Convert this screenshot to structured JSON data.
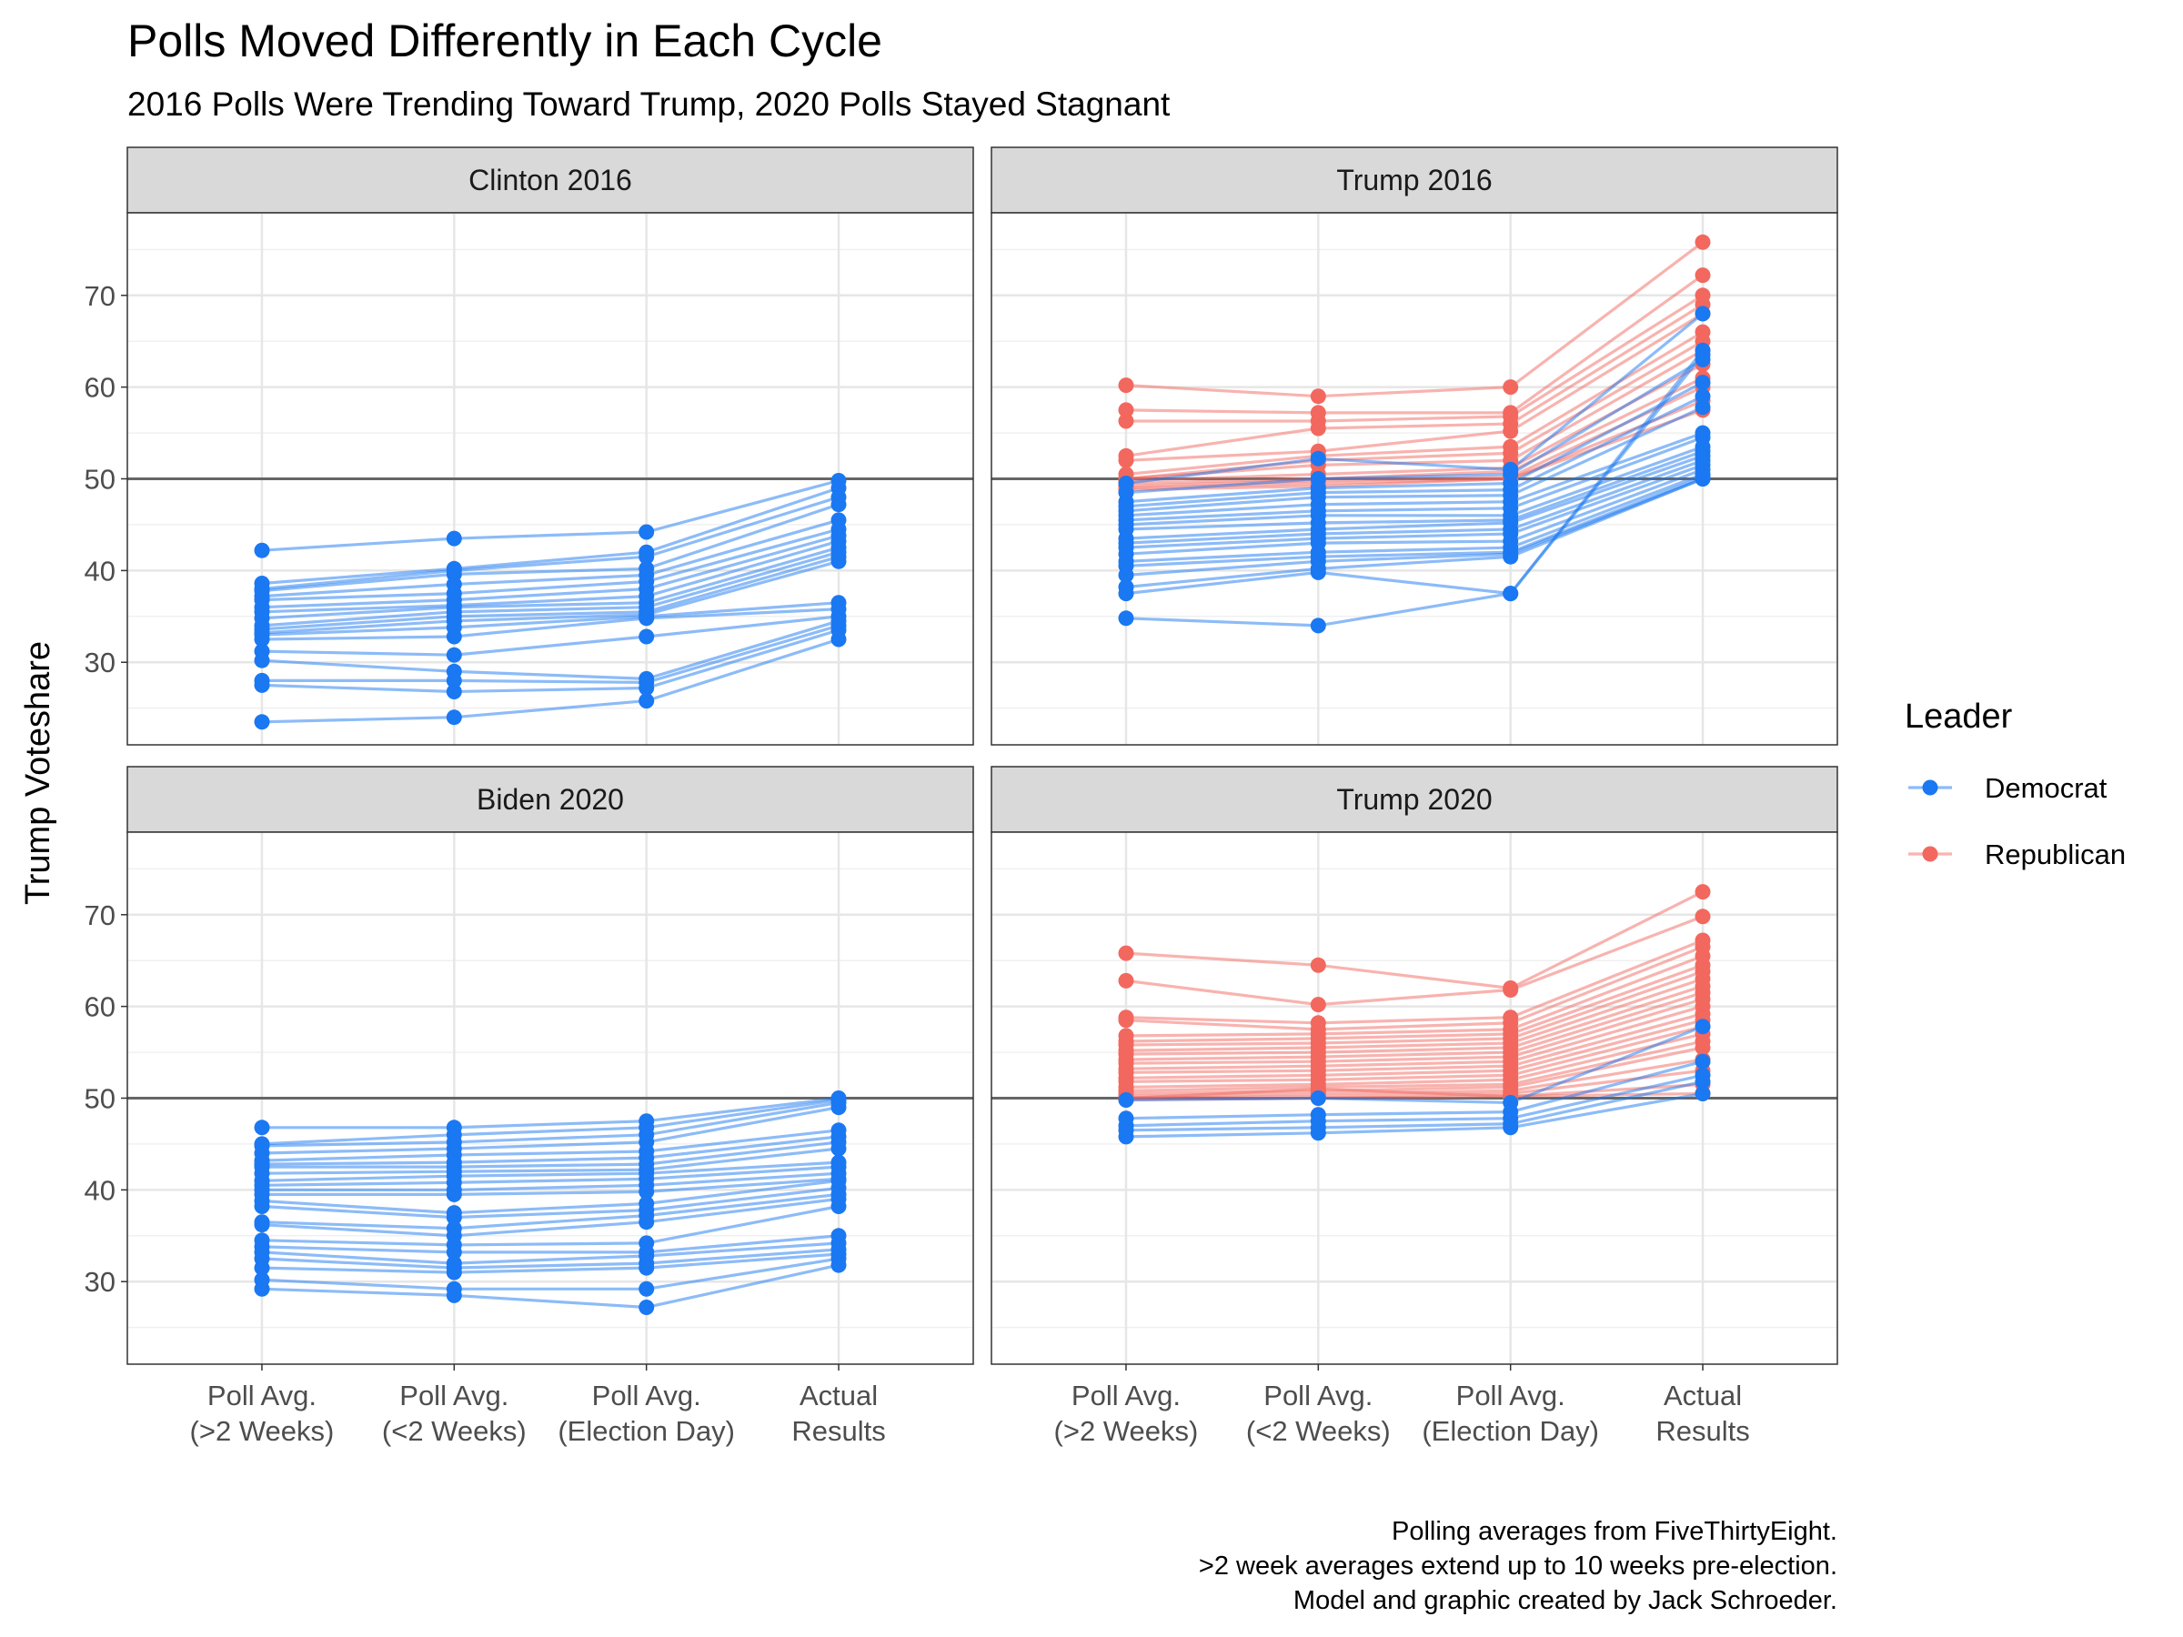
{
  "chart_data": {
    "type": "line",
    "title": "Polls Moved Differently in Each Cycle",
    "subtitle": "2016 Polls Were Trending Toward Trump, 2020 Polls Stayed Stagnant",
    "ylabel": "Trump Voteshare",
    "x_categories": [
      [
        "Poll Avg.",
        "(>2 Weeks)"
      ],
      [
        "Poll Avg.",
        "(<2 Weeks)"
      ],
      [
        "Poll Avg.",
        "(Election Day)"
      ],
      [
        "Actual",
        "Results"
      ]
    ],
    "ylim": [
      21,
      79
    ],
    "y_ticks": [
      30,
      40,
      50,
      60,
      70
    ],
    "reference_line": 50,
    "legend": {
      "title": "Leader",
      "placement": "right",
      "items": [
        {
          "label": "Democrat",
          "color": "#1A78F2"
        },
        {
          "label": "Republican",
          "color": "#F2685F"
        }
      ]
    },
    "caption": [
      "Polling averages from FiveThirtyEight.",
      ">2 week averages extend up to 10 weeks pre-election.",
      "Model and graphic created by Jack Schroeder."
    ],
    "panels": [
      {
        "label": "Clinton 2016",
        "series": [
          {
            "leader": "Democrat",
            "values": [
              42.2,
              43.5,
              44.2,
              49.8
            ]
          },
          {
            "leader": "Democrat",
            "values": [
              38.6,
              40.2,
              42.0,
              49.0
            ]
          },
          {
            "leader": "Democrat",
            "values": [
              38.0,
              40.0,
              41.5,
              48.0
            ]
          },
          {
            "leader": "Democrat",
            "values": [
              37.8,
              39.6,
              40.2,
              47.2
            ]
          },
          {
            "leader": "Democrat",
            "values": [
              37.2,
              38.5,
              39.5,
              45.5
            ]
          },
          {
            "leader": "Democrat",
            "values": [
              36.8,
              37.5,
              38.8,
              44.5
            ]
          },
          {
            "leader": "Democrat",
            "values": [
              36.0,
              36.8,
              38.0,
              43.8
            ]
          },
          {
            "leader": "Democrat",
            "values": [
              35.5,
              36.2,
              37.2,
              43.2
            ]
          },
          {
            "leader": "Democrat",
            "values": [
              34.8,
              36.0,
              36.5,
              42.5
            ]
          },
          {
            "leader": "Democrat",
            "values": [
              34.0,
              35.5,
              36.0,
              42.0
            ]
          },
          {
            "leader": "Democrat",
            "values": [
              33.6,
              35.0,
              35.5,
              41.5
            ]
          },
          {
            "leader": "Democrat",
            "values": [
              33.2,
              34.5,
              35.2,
              41.0
            ]
          },
          {
            "leader": "Democrat",
            "values": [
              33.0,
              33.8,
              35.0,
              36.5
            ]
          },
          {
            "leader": "Democrat",
            "values": [
              32.5,
              32.8,
              34.8,
              35.8
            ]
          },
          {
            "leader": "Democrat",
            "values": [
              31.2,
              30.8,
              32.8,
              35.0
            ]
          },
          {
            "leader": "Democrat",
            "values": [
              30.2,
              29.0,
              28.2,
              34.5
            ]
          },
          {
            "leader": "Democrat",
            "values": [
              28.0,
              28.0,
              27.8,
              34.0
            ]
          },
          {
            "leader": "Democrat",
            "values": [
              27.5,
              26.8,
              27.2,
              33.5
            ]
          },
          {
            "leader": "Democrat",
            "values": [
              23.5,
              24.0,
              25.8,
              32.5
            ]
          }
        ]
      },
      {
        "label": "Trump 2016",
        "series": [
          {
            "leader": "Republican",
            "values": [
              60.2,
              59.0,
              60.0,
              75.8
            ]
          },
          {
            "leader": "Republican",
            "values": [
              57.5,
              57.2,
              57.2,
              72.2
            ]
          },
          {
            "leader": "Republican",
            "values": [
              56.3,
              56.3,
              56.8,
              70.0
            ]
          },
          {
            "leader": "Republican",
            "values": [
              52.5,
              55.5,
              56.0,
              69.0
            ]
          },
          {
            "leader": "Republican",
            "values": [
              52.0,
              53.0,
              55.2,
              68.0
            ]
          },
          {
            "leader": "Republican",
            "values": [
              50.5,
              52.5,
              53.5,
              66.0
            ]
          },
          {
            "leader": "Republican",
            "values": [
              50.0,
              52.0,
              52.8,
              65.0
            ]
          },
          {
            "leader": "Republican",
            "values": [
              50.0,
              51.5,
              52.0,
              64.0
            ]
          },
          {
            "leader": "Republican",
            "values": [
              49.8,
              50.5,
              51.2,
              62.5
            ]
          },
          {
            "leader": "Republican",
            "values": [
              49.5,
              50.0,
              50.8,
              61.0
            ]
          },
          {
            "leader": "Republican",
            "values": [
              49.2,
              49.8,
              50.2,
              60.0
            ]
          },
          {
            "leader": "Republican",
            "values": [
              49.0,
              49.5,
              50.0,
              58.5
            ]
          },
          {
            "leader": "Republican",
            "values": [
              48.8,
              49.2,
              50.0,
              57.5
            ]
          },
          {
            "leader": "Democrat",
            "values": [
              49.5,
              52.2,
              51.0,
              68.0
            ]
          },
          {
            "leader": "Democrat",
            "values": [
              48.5,
              50.0,
              50.5,
              63.0
            ]
          },
          {
            "leader": "Democrat",
            "values": [
              47.5,
              49.0,
              49.5,
              60.5
            ]
          },
          {
            "leader": "Democrat",
            "values": [
              47.0,
              48.5,
              48.8,
              59.0
            ]
          },
          {
            "leader": "Democrat",
            "values": [
              46.5,
              48.0,
              48.2,
              57.8
            ]
          },
          {
            "leader": "Democrat",
            "values": [
              46.0,
              47.2,
              47.5,
              55.0
            ]
          },
          {
            "leader": "Democrat",
            "values": [
              45.5,
              46.5,
              46.8,
              54.5
            ]
          },
          {
            "leader": "Democrat",
            "values": [
              45.0,
              46.0,
              46.0,
              53.5
            ]
          },
          {
            "leader": "Democrat",
            "values": [
              44.5,
              45.2,
              45.5,
              53.0
            ]
          },
          {
            "leader": "Democrat",
            "values": [
              43.5,
              44.5,
              45.2,
              52.5
            ]
          },
          {
            "leader": "Democrat",
            "values": [
              43.0,
              44.0,
              44.5,
              52.0
            ]
          },
          {
            "leader": "Democrat",
            "values": [
              42.5,
              43.5,
              44.0,
              51.5
            ]
          },
          {
            "leader": "Democrat",
            "values": [
              41.8,
              43.0,
              43.2,
              51.0
            ]
          },
          {
            "leader": "Democrat",
            "values": [
              41.0,
              42.0,
              42.5,
              50.5
            ]
          },
          {
            "leader": "Democrat",
            "values": [
              40.5,
              41.5,
              42.0,
              50.2
            ]
          },
          {
            "leader": "Democrat",
            "values": [
              39.5,
              41.0,
              41.8,
              50.0
            ]
          },
          {
            "leader": "Democrat",
            "values": [
              38.2,
              40.2,
              41.5,
              50.0
            ]
          },
          {
            "leader": "Democrat",
            "values": [
              37.5,
              39.8,
              37.5,
              64.0
            ]
          },
          {
            "leader": "Democrat",
            "values": [
              34.8,
              34.0,
              37.5,
              63.5
            ]
          }
        ]
      },
      {
        "label": "Biden 2020",
        "series": [
          {
            "leader": "Democrat",
            "values": [
              46.8,
              46.8,
              47.5,
              50.0
            ]
          },
          {
            "leader": "Democrat",
            "values": [
              45.0,
              46.0,
              46.8,
              49.8
            ]
          },
          {
            "leader": "Democrat",
            "values": [
              44.8,
              45.2,
              46.0,
              49.5
            ]
          },
          {
            "leader": "Democrat",
            "values": [
              44.0,
              44.5,
              45.2,
              49.0
            ]
          },
          {
            "leader": "Democrat",
            "values": [
              43.2,
              43.8,
              44.2,
              46.5
            ]
          },
          {
            "leader": "Democrat",
            "values": [
              42.8,
              43.0,
              43.5,
              45.8
            ]
          },
          {
            "leader": "Democrat",
            "values": [
              42.5,
              42.5,
              42.8,
              45.2
            ]
          },
          {
            "leader": "Democrat",
            "values": [
              41.8,
              42.0,
              42.2,
              44.5
            ]
          },
          {
            "leader": "Democrat",
            "values": [
              41.0,
              41.5,
              41.8,
              43.0
            ]
          },
          {
            "leader": "Democrat",
            "values": [
              40.5,
              40.8,
              41.2,
              42.5
            ]
          },
          {
            "leader": "Democrat",
            "values": [
              40.0,
              40.0,
              40.5,
              41.8
            ]
          },
          {
            "leader": "Democrat",
            "values": [
              39.5,
              39.5,
              39.8,
              41.2
            ]
          },
          {
            "leader": "Democrat",
            "values": [
              38.8,
              37.5,
              38.5,
              41.0
            ]
          },
          {
            "leader": "Democrat",
            "values": [
              38.2,
              37.0,
              37.8,
              40.2
            ]
          },
          {
            "leader": "Democrat",
            "values": [
              36.5,
              35.8,
              37.2,
              39.5
            ]
          },
          {
            "leader": "Democrat",
            "values": [
              36.2,
              35.0,
              36.5,
              39.0
            ]
          },
          {
            "leader": "Democrat",
            "values": [
              34.5,
              34.0,
              34.2,
              38.2
            ]
          },
          {
            "leader": "Democrat",
            "values": [
              33.8,
              33.2,
              33.2,
              35.0
            ]
          },
          {
            "leader": "Democrat",
            "values": [
              33.2,
              32.0,
              32.8,
              34.2
            ]
          },
          {
            "leader": "Democrat",
            "values": [
              32.5,
              31.5,
              32.0,
              33.5
            ]
          },
          {
            "leader": "Democrat",
            "values": [
              31.5,
              31.0,
              31.5,
              33.0
            ]
          },
          {
            "leader": "Democrat",
            "values": [
              30.2,
              29.2,
              29.2,
              32.5
            ]
          },
          {
            "leader": "Democrat",
            "values": [
              29.2,
              28.5,
              27.2,
              31.8
            ]
          }
        ]
      },
      {
        "label": "Trump 2020",
        "series": [
          {
            "leader": "Republican",
            "values": [
              65.8,
              64.5,
              62.0,
              72.5
            ]
          },
          {
            "leader": "Republican",
            "values": [
              62.8,
              60.2,
              61.8,
              69.8
            ]
          },
          {
            "leader": "Republican",
            "values": [
              58.8,
              58.2,
              58.8,
              67.2
            ]
          },
          {
            "leader": "Republican",
            "values": [
              58.5,
              57.5,
              58.2,
              66.5
            ]
          },
          {
            "leader": "Republican",
            "values": [
              56.8,
              57.0,
              57.5,
              65.5
            ]
          },
          {
            "leader": "Republican",
            "values": [
              56.2,
              56.5,
              57.0,
              64.5
            ]
          },
          {
            "leader": "Republican",
            "values": [
              55.8,
              56.0,
              56.5,
              63.8
            ]
          },
          {
            "leader": "Republican",
            "values": [
              55.2,
              55.5,
              56.0,
              63.0
            ]
          },
          {
            "leader": "Republican",
            "values": [
              54.8,
              55.0,
              55.5,
              62.2
            ]
          },
          {
            "leader": "Republican",
            "values": [
              54.2,
              54.5,
              55.0,
              61.5
            ]
          },
          {
            "leader": "Republican",
            "values": [
              53.8,
              54.0,
              54.5,
              60.8
            ]
          },
          {
            "leader": "Republican",
            "values": [
              53.2,
              53.5,
              54.0,
              60.0
            ]
          },
          {
            "leader": "Republican",
            "values": [
              52.8,
              53.0,
              53.5,
              59.2
            ]
          },
          {
            "leader": "Republican",
            "values": [
              52.2,
              52.5,
              53.0,
              58.5
            ]
          },
          {
            "leader": "Republican",
            "values": [
              51.8,
              52.0,
              52.5,
              57.8
            ]
          },
          {
            "leader": "Republican",
            "values": [
              51.2,
              51.5,
              52.0,
              57.0
            ]
          },
          {
            "leader": "Republican",
            "values": [
              50.8,
              51.2,
              51.5,
              56.2
            ]
          },
          {
            "leader": "Republican",
            "values": [
              50.5,
              50.8,
              51.2,
              55.5
            ]
          },
          {
            "leader": "Republican",
            "values": [
              50.2,
              50.5,
              50.8,
              54.2
            ]
          },
          {
            "leader": "Republican",
            "values": [
              50.0,
              50.2,
              50.5,
              53.0
            ]
          },
          {
            "leader": "Republican",
            "values": [
              49.8,
              50.0,
              50.2,
              51.5
            ]
          },
          {
            "leader": "Republican",
            "values": [
              50.0,
              51.0,
              50.2,
              50.5
            ]
          },
          {
            "leader": "Democrat",
            "values": [
              49.8,
              50.0,
              49.5,
              57.8
            ]
          },
          {
            "leader": "Democrat",
            "values": [
              47.8,
              48.2,
              48.5,
              54.0
            ]
          },
          {
            "leader": "Democrat",
            "values": [
              47.0,
              47.5,
              47.8,
              52.5
            ]
          },
          {
            "leader": "Democrat",
            "values": [
              46.5,
              46.8,
              47.2,
              51.8
            ]
          },
          {
            "leader": "Democrat",
            "values": [
              45.8,
              46.2,
              46.8,
              50.5
            ]
          }
        ]
      }
    ]
  }
}
